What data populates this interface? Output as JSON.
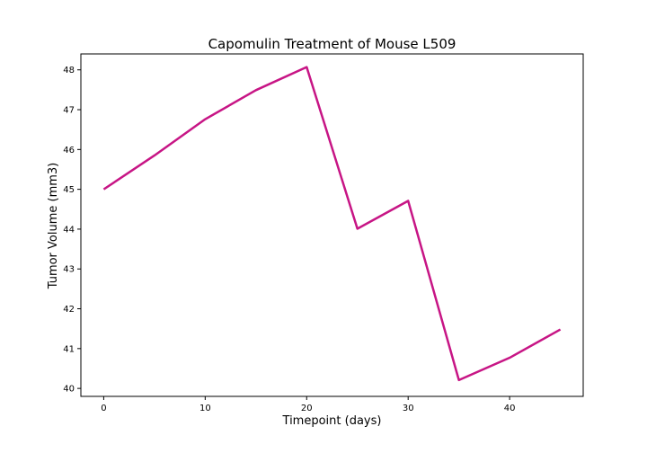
{
  "chart_data": {
    "type": "line",
    "title": "Capomulin Treatment of Mouse L509",
    "xlabel": "Timepoint (days)",
    "ylabel": "Tumor Volume (mm3)",
    "xlim": [
      -2.25,
      47.25
    ],
    "ylim": [
      39.8,
      48.4
    ],
    "xticks": [
      0,
      10,
      20,
      30,
      40
    ],
    "yticks": [
      40,
      41,
      42,
      43,
      44,
      45,
      46,
      47,
      48
    ],
    "grid": false,
    "line_color": "#c71585",
    "x": [
      0,
      5,
      10,
      15,
      20,
      25,
      30,
      35,
      40,
      45
    ],
    "y": [
      45.0,
      45.85,
      46.76,
      47.49,
      48.07,
      44.01,
      44.71,
      40.21,
      40.77,
      41.48
    ]
  }
}
